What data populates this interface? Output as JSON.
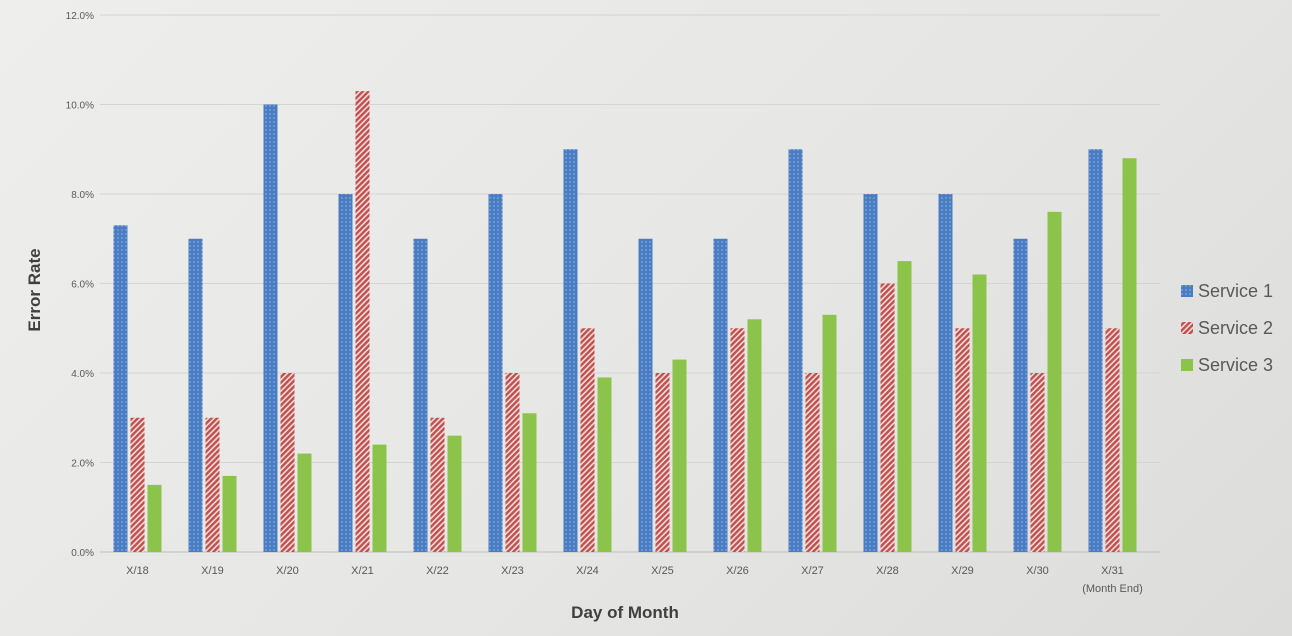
{
  "chart_data": {
    "type": "bar",
    "title": "",
    "xlabel": "Day of Month",
    "ylabel": "Error Rate",
    "ylim": [
      0,
      12
    ],
    "yticks": [
      0,
      2,
      4,
      6,
      8,
      10,
      12
    ],
    "ytick_labels": [
      "0.0%",
      "2.0%",
      "4.0%",
      "6.0%",
      "8.0%",
      "10.0%",
      "12.0%"
    ],
    "grid": true,
    "legend_position": "right",
    "categories": [
      "X/18",
      "X/19",
      "X/20",
      "X/21",
      "X/22",
      "X/23",
      "X/24",
      "X/25",
      "X/26",
      "X/27",
      "X/28",
      "X/29",
      "X/30",
      "X/31"
    ],
    "category_sublabels": [
      "",
      "",
      "",
      "",
      "",
      "",
      "",
      "",
      "",
      "",
      "",
      "",
      "",
      "(Month End)"
    ],
    "series": [
      {
        "name": "Service 1",
        "color": "#4a7cc4",
        "pattern": "dots",
        "values": [
          7.3,
          7.0,
          10.0,
          8.0,
          7.0,
          8.0,
          9.0,
          7.0,
          7.0,
          9.0,
          8.0,
          8.0,
          7.0,
          9.0
        ]
      },
      {
        "name": "Service 2",
        "color": "#c0504d",
        "pattern": "diagonal-stripes",
        "values": [
          3.0,
          3.0,
          4.0,
          10.3,
          3.0,
          4.0,
          5.0,
          4.0,
          5.0,
          4.0,
          6.0,
          5.0,
          4.0,
          5.0
        ]
      },
      {
        "name": "Service 3",
        "color": "#8cc34a",
        "pattern": "solid",
        "values": [
          1.5,
          1.7,
          2.2,
          2.4,
          2.6,
          3.1,
          3.9,
          4.3,
          5.2,
          5.3,
          6.5,
          6.2,
          7.6,
          8.8
        ]
      }
    ]
  }
}
